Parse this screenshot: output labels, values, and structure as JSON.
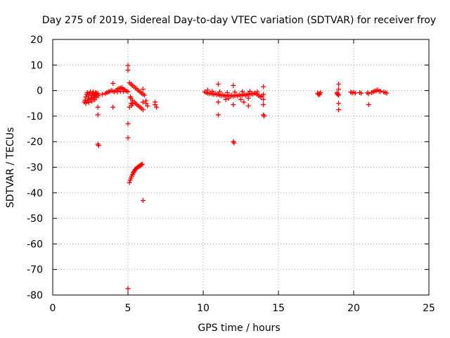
{
  "chart_data": {
    "type": "scatter",
    "title": "Day 275 of 2019, Sidereal Day-to-day VTEC variation (SDTVAR) for receiver froy",
    "xlabel": "GPS time / hours",
    "ylabel": "SDTVAR / TECUs",
    "xlim": [
      0,
      25
    ],
    "ylim": [
      -80,
      20
    ],
    "xticks": [
      0,
      5,
      10,
      15,
      20,
      25
    ],
    "yticks": [
      20,
      10,
      0,
      -10,
      -20,
      -30,
      -40,
      -50,
      -60,
      -70,
      -80
    ],
    "grid": true,
    "marker": "+",
    "color": "#ff0000",
    "series": [
      {
        "name": "SDTVAR",
        "points": [
          [
            2.1,
            -4.5
          ],
          [
            2.15,
            -3.8
          ],
          [
            2.2,
            -2.5
          ],
          [
            2.25,
            -1.5
          ],
          [
            2.3,
            -4.0
          ],
          [
            2.35,
            -3.2
          ],
          [
            2.4,
            -2.0
          ],
          [
            2.45,
            -1.2
          ],
          [
            2.5,
            -3.5
          ],
          [
            2.55,
            -2.8
          ],
          [
            2.6,
            -1.8
          ],
          [
            2.65,
            -1.0
          ],
          [
            2.7,
            -3.0
          ],
          [
            2.75,
            -2.2
          ],
          [
            2.8,
            -1.5
          ],
          [
            2.85,
            -0.8
          ],
          [
            2.9,
            -2.6
          ],
          [
            2.95,
            -1.9
          ],
          [
            3.0,
            -1.2
          ],
          [
            3.05,
            -2.0
          ],
          [
            2.2,
            -5.0
          ],
          [
            2.4,
            -4.6
          ],
          [
            2.6,
            -4.2
          ],
          [
            2.8,
            -3.6
          ],
          [
            2.3,
            -0.8
          ],
          [
            2.5,
            -0.5
          ],
          [
            2.7,
            -0.6
          ],
          [
            2.9,
            -1.0
          ],
          [
            3.0,
            -6.5
          ],
          [
            3.0,
            -9.5
          ],
          [
            3.0,
            -21.0
          ],
          [
            3.05,
            -21.5
          ],
          [
            3.3,
            -1.5
          ],
          [
            3.5,
            -1.2
          ],
          [
            3.6,
            -0.8
          ],
          [
            3.7,
            -0.5
          ],
          [
            3.8,
            -0.3
          ],
          [
            3.9,
            0.0
          ],
          [
            4.0,
            -0.2
          ],
          [
            4.1,
            -0.5
          ],
          [
            4.0,
            2.8
          ],
          [
            4.0,
            -6.5
          ],
          [
            4.2,
            0.0
          ],
          [
            4.3,
            0.5
          ],
          [
            4.4,
            0.8
          ],
          [
            4.5,
            1.0
          ],
          [
            4.6,
            0.8
          ],
          [
            4.7,
            0.5
          ],
          [
            4.8,
            0.2
          ],
          [
            4.9,
            -0.2
          ],
          [
            5.0,
            -0.5
          ],
          [
            4.3,
            -0.5
          ],
          [
            4.5,
            -0.3
          ],
          [
            4.7,
            -0.4
          ],
          [
            4.6,
            1.2
          ],
          [
            5.0,
            9.8
          ],
          [
            5.0,
            8.0
          ],
          [
            5.0,
            -13.0
          ],
          [
            5.0,
            -18.5
          ],
          [
            5.0,
            -77.5
          ],
          [
            5.1,
            3.0
          ],
          [
            5.2,
            2.5
          ],
          [
            5.3,
            2.0
          ],
          [
            5.4,
            1.5
          ],
          [
            5.5,
            1.0
          ],
          [
            5.6,
            0.5
          ],
          [
            5.7,
            0.0
          ],
          [
            5.8,
            -0.5
          ],
          [
            5.9,
            -1.0
          ],
          [
            6.0,
            -1.5
          ],
          [
            6.1,
            -1.8
          ],
          [
            5.2,
            -3.0
          ],
          [
            5.3,
            -3.8
          ],
          [
            5.4,
            -4.5
          ],
          [
            5.5,
            -5.0
          ],
          [
            5.6,
            -5.5
          ],
          [
            5.7,
            -6.0
          ],
          [
            5.8,
            -6.5
          ],
          [
            5.9,
            -7.0
          ],
          [
            6.0,
            -7.5
          ],
          [
            5.15,
            -2.5
          ],
          [
            5.2,
            -5.0
          ],
          [
            5.25,
            -5.8
          ],
          [
            5.3,
            -5.2
          ],
          [
            5.1,
            -6.5
          ],
          [
            6.0,
            0.5
          ],
          [
            6.0,
            -4.5
          ],
          [
            6.2,
            -5.0
          ],
          [
            6.3,
            -6.0
          ],
          [
            6.2,
            -4.0
          ],
          [
            6.8,
            -4.5
          ],
          [
            6.8,
            -5.5
          ],
          [
            6.9,
            -6.5
          ],
          [
            5.1,
            -36.0
          ],
          [
            5.15,
            -35.0
          ],
          [
            5.2,
            -34.2
          ],
          [
            5.25,
            -33.5
          ],
          [
            5.3,
            -32.8
          ],
          [
            5.35,
            -32.2
          ],
          [
            5.4,
            -31.7
          ],
          [
            5.45,
            -31.2
          ],
          [
            5.5,
            -30.8
          ],
          [
            5.55,
            -30.5
          ],
          [
            5.6,
            -30.2
          ],
          [
            5.65,
            -30.0
          ],
          [
            5.7,
            -29.8
          ],
          [
            5.75,
            -29.6
          ],
          [
            5.8,
            -29.4
          ],
          [
            5.85,
            -29.2
          ],
          [
            5.9,
            -29.0
          ],
          [
            5.95,
            -28.8
          ],
          [
            6.0,
            -43.0
          ],
          [
            10.1,
            -0.5
          ],
          [
            10.2,
            -0.8
          ],
          [
            10.3,
            -1.0
          ],
          [
            10.4,
            -1.2
          ],
          [
            10.5,
            -1.0
          ],
          [
            10.6,
            -1.3
          ],
          [
            10.7,
            -1.5
          ],
          [
            10.8,
            -1.2
          ],
          [
            10.9,
            -1.6
          ],
          [
            11.0,
            -1.5
          ],
          [
            11.1,
            -1.8
          ],
          [
            11.2,
            -2.0
          ],
          [
            11.3,
            -1.7
          ],
          [
            11.4,
            -2.0
          ],
          [
            11.5,
            -2.2
          ],
          [
            11.6,
            -1.8
          ],
          [
            11.7,
            -2.1
          ],
          [
            11.8,
            -2.0
          ],
          [
            11.9,
            -1.9
          ],
          [
            12.0,
            -2.2
          ],
          [
            12.1,
            -2.0
          ],
          [
            12.2,
            -1.8
          ],
          [
            12.3,
            -2.1
          ],
          [
            12.4,
            -1.7
          ],
          [
            12.5,
            -2.0
          ],
          [
            12.6,
            -1.8
          ],
          [
            12.7,
            -1.5
          ],
          [
            12.8,
            -1.9
          ],
          [
            12.9,
            -1.6
          ],
          [
            13.0,
            -1.3
          ],
          [
            13.1,
            -1.5
          ],
          [
            13.2,
            -1.2
          ],
          [
            13.3,
            -1.4
          ],
          [
            13.4,
            -1.0
          ],
          [
            13.5,
            -1.2
          ],
          [
            13.6,
            -1.5
          ],
          [
            13.7,
            -2.0
          ],
          [
            13.8,
            -2.5
          ],
          [
            13.9,
            -2.2
          ],
          [
            14.0,
            -1.5
          ],
          [
            10.3,
            0.2
          ],
          [
            10.6,
            -0.3
          ],
          [
            11.1,
            -0.5
          ],
          [
            11.6,
            -0.8
          ],
          [
            12.1,
            -0.6
          ],
          [
            12.6,
            -0.4
          ],
          [
            13.1,
            -0.3
          ],
          [
            13.6,
            -0.5
          ],
          [
            11.0,
            2.5
          ],
          [
            11.0,
            -4.5
          ],
          [
            11.0,
            -9.5
          ],
          [
            11.5,
            -3.5
          ],
          [
            11.7,
            -3.0
          ],
          [
            12.0,
            -5.5
          ],
          [
            12.0,
            2.0
          ],
          [
            12.0,
            -20.0
          ],
          [
            12.05,
            -20.5
          ],
          [
            12.5,
            -3.5
          ],
          [
            12.7,
            -4.5
          ],
          [
            13.0,
            -6.0
          ],
          [
            13.0,
            -3.0
          ],
          [
            14.0,
            1.5
          ],
          [
            14.0,
            -3.5
          ],
          [
            14.0,
            -5.5
          ],
          [
            14.0,
            -9.5
          ],
          [
            14.05,
            -10.0
          ],
          [
            17.6,
            -1.0
          ],
          [
            17.7,
            -1.2
          ],
          [
            17.8,
            -0.8
          ],
          [
            17.65,
            -1.6
          ],
          [
            17.75,
            -1.5
          ],
          [
            18.9,
            -0.8
          ],
          [
            18.95,
            -1.5
          ],
          [
            19.0,
            -1.8
          ],
          [
            18.9,
            -1.2
          ],
          [
            19.0,
            2.5
          ],
          [
            19.0,
            0.5
          ],
          [
            19.0,
            -5.0
          ],
          [
            19.0,
            -7.5
          ],
          [
            19.8,
            -0.6
          ],
          [
            19.9,
            -0.9
          ],
          [
            20.0,
            -0.7
          ],
          [
            20.1,
            -1.0
          ],
          [
            20.4,
            -0.8
          ],
          [
            20.5,
            -1.0
          ],
          [
            20.9,
            -0.9
          ],
          [
            21.0,
            -1.2
          ],
          [
            21.0,
            -5.5
          ],
          [
            21.2,
            -0.8
          ],
          [
            21.3,
            -0.5
          ],
          [
            21.4,
            -0.2
          ],
          [
            21.5,
            0.0
          ],
          [
            21.6,
            0.2
          ],
          [
            21.7,
            -0.2
          ],
          [
            21.8,
            -0.3
          ],
          [
            22.0,
            -0.6
          ],
          [
            22.1,
            -0.8
          ],
          [
            22.2,
            -1.0
          ]
        ]
      }
    ]
  }
}
